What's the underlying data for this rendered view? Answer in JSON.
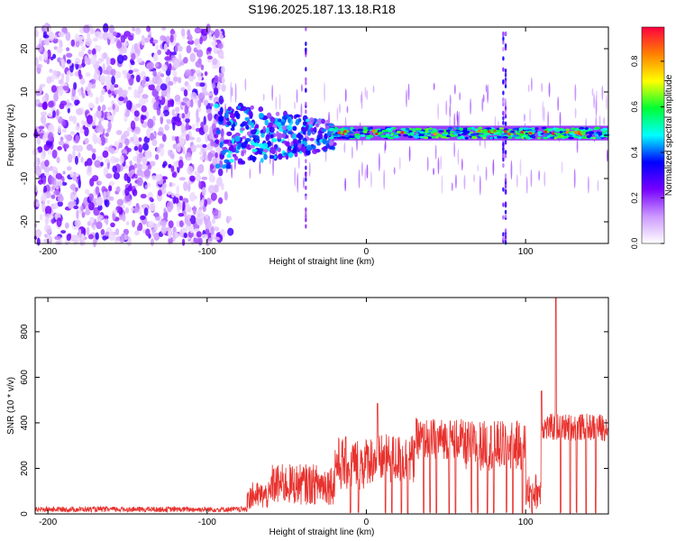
{
  "figure": {
    "title": "S196.2025.187.13.18.R18"
  },
  "chart_data": [
    {
      "type": "heatmap",
      "name": "spectrogram",
      "xlabel": "Height of straight line (km)",
      "ylabel": "Frequency (Hz)",
      "xlim": [
        -208,
        152
      ],
      "ylim": [
        -25,
        25
      ],
      "xticks": [
        -200,
        -100,
        0,
        100
      ],
      "yticks": [
        -20,
        -10,
        0,
        10,
        20
      ],
      "colorbar": {
        "label": "Normalized spectral amplitude",
        "range": [
          0,
          0.95
        ],
        "ticks": [
          0.0,
          0.2,
          0.4,
          0.6,
          0.8
        ],
        "tick_labels": [
          "0.0",
          "0.2",
          "0.4",
          "0.6",
          "0.8"
        ],
        "colormap": [
          "#ffffff",
          "#cc99ff",
          "#7700ff",
          "#0000ff",
          "#00ffff",
          "#00ff33",
          "#ffff00",
          "#ff8000",
          "#ff0040"
        ]
      },
      "description_regions": [
        {
          "x_range": [
            -208,
            -95
          ],
          "kind": "broadband purple noise, amplitude ~0.05-0.25"
        },
        {
          "x_range": [
            -95,
            -20
          ],
          "kind": "transition, energy concentrated near 0 Hz, amplitude ~0.3-0.5"
        },
        {
          "x_range": [
            -20,
            152
          ],
          "kind": "narrow band at ~0-1 Hz, peaks up to ~0.95"
        }
      ]
    },
    {
      "type": "line",
      "name": "snr",
      "xlabel": "Height of straight line (km)",
      "ylabel": "SNR (10 * v/v)",
      "xlim": [
        -208,
        152
      ],
      "ylim": [
        0,
        950
      ],
      "xticks": [
        -200,
        -100,
        0,
        100
      ],
      "yticks": [
        0,
        200,
        400,
        600,
        800
      ],
      "color": "#e8322e",
      "segments": [
        {
          "x": [
            -208,
            -75
          ],
          "level": 20,
          "spread": 12
        },
        {
          "x": [
            -75,
            -60
          ],
          "level": 80,
          "spread": 60
        },
        {
          "x": [
            -60,
            -20
          ],
          "level": 130,
          "spread": 90
        },
        {
          "x": [
            -20,
            0
          ],
          "level": 220,
          "spread": 120
        },
        {
          "x": [
            0,
            30
          ],
          "level": 240,
          "spread": 110
        },
        {
          "x": [
            30,
            60
          ],
          "level": 330,
          "spread": 90
        },
        {
          "x": [
            60,
            100
          ],
          "level": 300,
          "spread": 110
        },
        {
          "x": [
            100,
            110
          ],
          "level": 100,
          "spread": 80
        },
        {
          "x": [
            110,
            152
          ],
          "level": 380,
          "spread": 60
        }
      ],
      "spikes": [
        {
          "x": 7,
          "y": 485
        },
        {
          "x": 110,
          "y": 540
        },
        {
          "x": 119,
          "y": 950
        }
      ],
      "dropouts_x": [
        -10,
        -5,
        12,
        16,
        22,
        26,
        36,
        40,
        44,
        52,
        56,
        66,
        70,
        76,
        80,
        88,
        92,
        98,
        104,
        122,
        128,
        132,
        138,
        144
      ]
    }
  ]
}
